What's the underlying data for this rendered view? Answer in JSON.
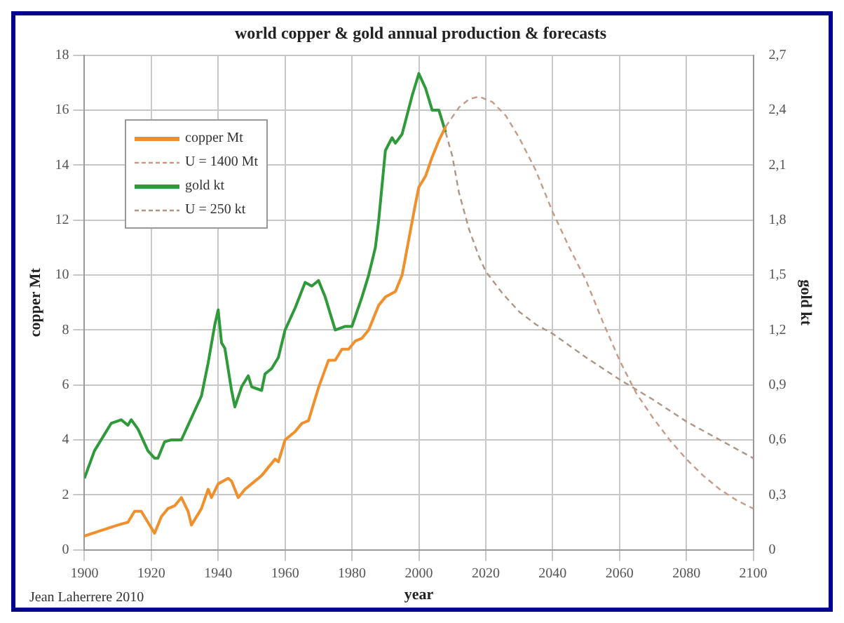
{
  "chart_data": {
    "type": "line",
    "title": "world copper & gold annual production & forecasts",
    "xlabel": "year",
    "ylabel": "copper Mt",
    "y2label": "gold kt",
    "annotations": [
      "Jean Laherrere 2010"
    ],
    "xlim": [
      1900,
      2100
    ],
    "xticks": [
      1900,
      1920,
      1940,
      1960,
      1980,
      2000,
      2020,
      2040,
      2060,
      2080,
      2100
    ],
    "ylim": [
      0,
      18
    ],
    "yticks": [
      0,
      2,
      4,
      6,
      8,
      10,
      12,
      14,
      16,
      18
    ],
    "y2lim": [
      0,
      2.7
    ],
    "y2ticks": [
      0,
      {
        "value": 0.3,
        "label": "0,3"
      },
      {
        "value": 0.6,
        "label": "0,6"
      },
      {
        "value": 0.9,
        "label": "0,9"
      },
      {
        "value": 1.2,
        "label": "1,2"
      },
      {
        "value": 1.5,
        "label": "1,5"
      },
      {
        "value": 1.8,
        "label": "1,8"
      },
      {
        "value": 2.1,
        "label": "2,1"
      },
      {
        "value": 2.4,
        "label": "2,4"
      },
      {
        "value": 2.7,
        "label": "2,7"
      }
    ],
    "grid": true,
    "legend": "top left",
    "marker": "none",
    "series": [
      {
        "name": "copper Mt",
        "color": "#f0902c",
        "line_style": "solid",
        "x": [
          1900,
          1905,
          1910,
          1913,
          1915,
          1917,
          1919,
          1921,
          1923,
          1925,
          1927,
          1929,
          1931,
          1932,
          1935,
          1937,
          1938,
          1940,
          1943,
          1944,
          1946,
          1948,
          1950,
          1953,
          1955,
          1957,
          1958,
          1960,
          1963,
          1965,
          1967,
          1970,
          1973,
          1975,
          1977,
          1979,
          1981,
          1983,
          1985,
          1988,
          1990,
          1993,
          1995,
          1997,
          1999,
          2000,
          2002,
          2004,
          2006,
          2008
        ],
        "values": [
          0.5,
          0.7,
          0.9,
          1.0,
          1.4,
          1.4,
          1.0,
          0.6,
          1.2,
          1.5,
          1.6,
          1.9,
          1.4,
          0.9,
          1.5,
          2.2,
          1.9,
          2.4,
          2.6,
          2.5,
          1.9,
          2.2,
          2.4,
          2.7,
          3.0,
          3.3,
          3.2,
          4.0,
          4.3,
          4.6,
          4.7,
          5.9,
          6.9,
          6.9,
          7.3,
          7.3,
          7.6,
          7.7,
          8.0,
          8.9,
          9.2,
          9.4,
          10.0,
          11.3,
          12.6,
          13.2,
          13.6,
          14.3,
          14.9,
          15.4
        ]
      },
      {
        "name": "U = 1400 Mt",
        "color": "#c89a88",
        "line_style": "dashed",
        "x": [
          2008,
          2012,
          2015,
          2018,
          2022,
          2026,
          2030,
          2035,
          2040,
          2045,
          2050,
          2055,
          2060,
          2065,
          2070,
          2075,
          2080,
          2085,
          2090,
          2095,
          2100
        ],
        "values": [
          15.4,
          16.1,
          16.4,
          16.5,
          16.3,
          15.8,
          15.0,
          13.8,
          12.3,
          11.0,
          9.8,
          8.3,
          6.9,
          5.7,
          4.8,
          4.0,
          3.3,
          2.7,
          2.2,
          1.8,
          1.5
        ]
      },
      {
        "name": "gold kt",
        "color": "#2e9a3a",
        "line_style": "solid",
        "axis": "y2",
        "x": [
          1900,
          1903,
          1906,
          1908,
          1911,
          1913,
          1914,
          1916,
          1919,
          1921,
          1922,
          1924,
          1926,
          1929,
          1932,
          1935,
          1937,
          1939,
          1940,
          1941,
          1942,
          1944,
          1945,
          1947,
          1949,
          1950,
          1953,
          1954,
          1956,
          1958,
          1960,
          1963,
          1966,
          1968,
          1970,
          1972,
          1975,
          1978,
          1980,
          1983,
          1985,
          1987,
          1988,
          1990,
          1992,
          1993,
          1995,
          1998,
          2000,
          2002,
          2004,
          2006,
          2008
        ],
        "values": [
          0.39,
          0.54,
          0.63,
          0.69,
          0.71,
          0.68,
          0.71,
          0.66,
          0.54,
          0.5,
          0.5,
          0.59,
          0.6,
          0.6,
          0.72,
          0.84,
          1.02,
          1.23,
          1.31,
          1.13,
          1.1,
          0.87,
          0.78,
          0.89,
          0.95,
          0.89,
          0.87,
          0.96,
          0.99,
          1.05,
          1.2,
          1.32,
          1.46,
          1.44,
          1.47,
          1.38,
          1.2,
          1.22,
          1.22,
          1.38,
          1.5,
          1.65,
          1.8,
          2.18,
          2.25,
          2.22,
          2.27,
          2.48,
          2.6,
          2.52,
          2.4,
          2.4,
          2.28
        ]
      },
      {
        "name": "U = 250 kt",
        "color": "#b09484",
        "line_style": "dashed",
        "axis": "y2",
        "x": [
          2008,
          2010,
          2012,
          2015,
          2018,
          2020,
          2025,
          2030,
          2035,
          2040,
          2050,
          2060,
          2070,
          2080,
          2090,
          2100
        ],
        "values": [
          2.28,
          2.15,
          1.95,
          1.75,
          1.6,
          1.52,
          1.4,
          1.3,
          1.23,
          1.18,
          1.05,
          0.93,
          0.82,
          0.7,
          0.6,
          0.5
        ]
      }
    ]
  }
}
